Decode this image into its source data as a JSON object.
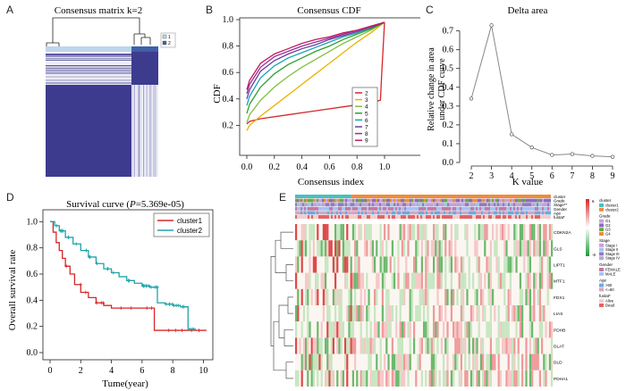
{
  "panels": {
    "A": {
      "label": "A",
      "title": "Consensus matrix k=2",
      "legend": [
        "1",
        "2"
      ],
      "colors": {
        "dark": "#3d3b8e",
        "light": "#eeeef7",
        "c1": "#bfd5ea",
        "c2": "#3f5fa8"
      }
    },
    "B": {
      "label": "B",
      "title": "Consensus CDF",
      "xlabel": "Consensus index",
      "ylabel": "CDF"
    },
    "C": {
      "label": "C",
      "title": "Delta area",
      "xlabel": "K value",
      "ylabel_line1": "Relative change in area",
      "ylabel_line2": "under CDF curve"
    },
    "D": {
      "label": "D",
      "title_prefix": "Survival curve (",
      "title_p": "P",
      "title_suffix": "=5.369e-05)",
      "xlabel": "Tume(year)",
      "ylabel": "Overall survival rate"
    },
    "E": {
      "label": "E"
    }
  },
  "chart_data": [
    {
      "type": "line",
      "panel": "B",
      "title": "Consensus CDF",
      "xlabel": "Consensus index",
      "ylabel": "CDF",
      "xlim": [
        0,
        1
      ],
      "ylim": [
        0,
        1
      ],
      "xticks": [
        "0.0",
        "0.2",
        "0.4",
        "0.6",
        "0.8",
        "1.0"
      ],
      "yticks": [
        "0.2",
        "0.4",
        "0.6",
        "0.8",
        "1.0"
      ],
      "series": [
        {
          "name": "2",
          "color": "#d62728",
          "x": [
            0,
            0.02,
            0.1,
            0.3,
            0.5,
            0.7,
            0.9,
            0.97,
            0.98,
            1.0
          ],
          "y": [
            0.21,
            0.23,
            0.25,
            0.28,
            0.31,
            0.34,
            0.37,
            0.39,
            0.6,
            0.98
          ]
        },
        {
          "name": "3",
          "color": "#e6b400",
          "x": [
            0,
            0.02,
            0.1,
            0.2,
            0.3,
            0.4,
            0.5,
            0.6,
            0.7,
            0.8,
            0.9,
            1.0
          ],
          "y": [
            0.16,
            0.2,
            0.27,
            0.35,
            0.43,
            0.51,
            0.59,
            0.67,
            0.75,
            0.83,
            0.9,
            0.98
          ]
        },
        {
          "name": "4",
          "color": "#7fbf3f",
          "x": [
            0,
            0.02,
            0.1,
            0.2,
            0.3,
            0.4,
            0.5,
            0.6,
            0.7,
            0.8,
            0.9,
            1.0
          ],
          "y": [
            0.22,
            0.28,
            0.39,
            0.49,
            0.57,
            0.64,
            0.7,
            0.76,
            0.82,
            0.87,
            0.92,
            0.98
          ]
        },
        {
          "name": "5",
          "color": "#2ca02c",
          "x": [
            0,
            0.02,
            0.1,
            0.2,
            0.3,
            0.4,
            0.5,
            0.6,
            0.7,
            0.8,
            0.9,
            1.0
          ],
          "y": [
            0.29,
            0.36,
            0.49,
            0.59,
            0.66,
            0.71,
            0.76,
            0.8,
            0.85,
            0.89,
            0.93,
            0.98
          ]
        },
        {
          "name": "6",
          "color": "#17a3b8",
          "x": [
            0,
            0.02,
            0.1,
            0.2,
            0.3,
            0.4,
            0.5,
            0.6,
            0.7,
            0.8,
            0.9,
            1.0
          ],
          "y": [
            0.35,
            0.42,
            0.56,
            0.65,
            0.71,
            0.75,
            0.79,
            0.83,
            0.87,
            0.9,
            0.94,
            0.98
          ]
        },
        {
          "name": "7",
          "color": "#6a3d9a",
          "x": [
            0,
            0.02,
            0.1,
            0.2,
            0.3,
            0.4,
            0.5,
            0.6,
            0.7,
            0.8,
            0.9,
            1.0
          ],
          "y": [
            0.4,
            0.47,
            0.61,
            0.69,
            0.74,
            0.78,
            0.81,
            0.85,
            0.88,
            0.91,
            0.94,
            0.98
          ]
        },
        {
          "name": "8",
          "color": "#9b2a9b",
          "x": [
            0,
            0.02,
            0.1,
            0.2,
            0.3,
            0.4,
            0.5,
            0.6,
            0.7,
            0.8,
            0.9,
            1.0
          ],
          "y": [
            0.44,
            0.51,
            0.64,
            0.72,
            0.76,
            0.8,
            0.83,
            0.86,
            0.89,
            0.92,
            0.95,
            0.98
          ]
        },
        {
          "name": "9",
          "color": "#c2185b",
          "x": [
            0,
            0.02,
            0.1,
            0.2,
            0.3,
            0.4,
            0.5,
            0.6,
            0.7,
            0.8,
            0.9,
            1.0
          ],
          "y": [
            0.47,
            0.54,
            0.67,
            0.74,
            0.78,
            0.82,
            0.85,
            0.87,
            0.9,
            0.92,
            0.95,
            0.98
          ]
        }
      ],
      "legend": [
        "2",
        "3",
        "4",
        "5",
        "6",
        "7",
        "8",
        "9"
      ]
    },
    {
      "type": "line",
      "panel": "C",
      "title": "Delta area",
      "xlabel": "K value",
      "ylabel": "Relative change in area under CDF curve",
      "x": [
        2,
        3,
        4,
        5,
        6,
        7,
        8,
        9
      ],
      "y": [
        0.34,
        0.73,
        0.15,
        0.08,
        0.04,
        0.045,
        0.035,
        0.03
      ],
      "xlim": [
        1.6,
        9.4
      ],
      "ylim": [
        0,
        0.76
      ],
      "xticks": [
        "2",
        "3",
        "4",
        "5",
        "6",
        "7",
        "8",
        "9"
      ],
      "yticks": [
        "0.0",
        "0.1",
        "0.2",
        "0.3",
        "0.4",
        "0.5",
        "0.6",
        "0.7"
      ]
    },
    {
      "type": "line",
      "panel": "D",
      "title": "Survival curve (P=5.369e-05)",
      "xlabel": "Tume(year)",
      "ylabel": "Overall survival rate",
      "xlim": [
        0,
        10.5
      ],
      "ylim": [
        0,
        1.05
      ],
      "xticks": [
        "0",
        "2",
        "4",
        "6",
        "8",
        "10"
      ],
      "yticks": [
        "0.0",
        "0.2",
        "0.4",
        "0.6",
        "0.8",
        "1.0"
      ],
      "series": [
        {
          "name": "cluster1",
          "color": "#d62728",
          "x": [
            0,
            0.2,
            0.4,
            0.6,
            0.8,
            1.0,
            1.3,
            1.6,
            2.0,
            2.5,
            3.0,
            3.5,
            4.0,
            5.0,
            6.0,
            6.8,
            7.5,
            8.5,
            9.5,
            10.2
          ],
          "y": [
            1.0,
            0.92,
            0.84,
            0.78,
            0.72,
            0.66,
            0.6,
            0.52,
            0.46,
            0.42,
            0.38,
            0.36,
            0.34,
            0.34,
            0.34,
            0.17,
            0.17,
            0.17,
            0.17,
            0.17
          ]
        },
        {
          "name": "cluster2",
          "color": "#1fa3a8",
          "x": [
            0,
            0.3,
            0.6,
            1.0,
            1.5,
            2.0,
            2.5,
            3.0,
            3.5,
            4.0,
            4.5,
            5.0,
            5.5,
            6.0,
            6.5,
            7.0,
            7.5,
            8.0,
            8.5,
            9.0,
            9.5
          ],
          "y": [
            1.0,
            0.97,
            0.93,
            0.88,
            0.83,
            0.78,
            0.73,
            0.68,
            0.64,
            0.61,
            0.58,
            0.55,
            0.53,
            0.51,
            0.5,
            0.38,
            0.37,
            0.36,
            0.35,
            0.18,
            0.18
          ]
        }
      ],
      "legend": [
        "cluster1",
        "cluster2"
      ]
    },
    {
      "type": "heatmap",
      "panel": "E",
      "annotation_tracks": [
        "cluster",
        "Grade",
        "Stage**",
        "Gender",
        "Age",
        "fustat*"
      ],
      "rows": [
        "CDKN2A",
        "GLS",
        "LIPT1",
        "MTF1",
        "FDX1",
        "LIAS",
        "PDHB",
        "DLAT",
        "DLD",
        "PDHA1"
      ],
      "scale": [
        "6",
        "-6"
      ],
      "legend": [
        {
          "title": "cluster",
          "items": [
            {
              "label": "cluster1",
              "color": "#4bbfbf"
            },
            {
              "label": "cluster2",
              "color": "#f08a3c"
            }
          ]
        },
        {
          "title": "Grade",
          "items": [
            {
              "label": "G1",
              "color": "#c9a0dc"
            },
            {
              "label": "G2",
              "color": "#8e6bbf"
            },
            {
              "label": "G3",
              "color": "#6aa84f"
            },
            {
              "label": "G4",
              "color": "#e69138"
            }
          ]
        },
        {
          "title": "Stage",
          "items": [
            {
              "label": "Stage I",
              "color": "#c9a0dc"
            },
            {
              "label": "Stage II",
              "color": "#9fc5e8"
            },
            {
              "label": "Stage III",
              "color": "#8e7cc3"
            },
            {
              "label": "Stage IV",
              "color": "#b4a7d6"
            }
          ]
        },
        {
          "title": "Gender",
          "items": [
            {
              "label": "FEMALE",
              "color": "#c27ba0"
            },
            {
              "label": "MALE",
              "color": "#a4c2f4"
            }
          ]
        },
        {
          "title": "Age",
          "items": [
            {
              "label": ">60",
              "color": "#6fa8dc"
            },
            {
              "label": "<=60",
              "color": "#d5a6bd"
            }
          ]
        },
        {
          "title": "fustat*",
          "items": [
            {
              "label": "Alive",
              "color": "#f4cccc"
            },
            {
              "label": "Dead",
              "color": "#e06666"
            }
          ]
        }
      ]
    }
  ]
}
